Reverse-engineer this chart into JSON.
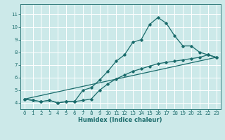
{
  "xlabel": "Humidex (Indice chaleur)",
  "bg_color": "#cce9e9",
  "grid_color": "#ffffff",
  "line_color": "#1a6b6b",
  "xlim": [
    -0.5,
    23.5
  ],
  "ylim": [
    3.5,
    11.8
  ],
  "xticks": [
    0,
    1,
    2,
    3,
    4,
    5,
    6,
    7,
    8,
    9,
    10,
    11,
    12,
    13,
    14,
    15,
    16,
    17,
    18,
    19,
    20,
    21,
    22,
    23
  ],
  "yticks": [
    4,
    5,
    6,
    7,
    8,
    9,
    10,
    11
  ],
  "curve1_x": [
    0,
    1,
    2,
    3,
    4,
    5,
    6,
    7,
    8,
    9,
    10,
    11,
    12,
    13,
    14,
    15,
    16,
    17,
    18,
    19,
    20,
    21,
    22,
    23
  ],
  "curve1_y": [
    4.3,
    4.2,
    4.1,
    4.2,
    4.0,
    4.1,
    4.1,
    5.0,
    5.2,
    5.8,
    6.5,
    7.3,
    7.8,
    8.8,
    9.0,
    10.2,
    10.75,
    10.3,
    9.3,
    8.5,
    8.5,
    8.0,
    7.8,
    7.6
  ],
  "curve2_x": [
    0,
    1,
    2,
    3,
    4,
    5,
    6,
    7,
    8,
    9,
    10,
    11,
    12,
    13,
    14,
    15,
    16,
    17,
    18,
    19,
    20,
    21,
    22,
    23
  ],
  "curve2_y": [
    4.3,
    4.2,
    4.1,
    4.2,
    4.0,
    4.1,
    4.1,
    4.2,
    4.3,
    5.0,
    5.5,
    5.9,
    6.2,
    6.5,
    6.7,
    6.9,
    7.1,
    7.2,
    7.3,
    7.4,
    7.5,
    7.6,
    7.8,
    7.6
  ],
  "curve3_x": [
    0,
    23
  ],
  "curve3_y": [
    4.3,
    7.6
  ],
  "marker_size": 1.8,
  "line_width": 0.9,
  "tick_fontsize": 5.0,
  "xlabel_fontsize": 6.0
}
